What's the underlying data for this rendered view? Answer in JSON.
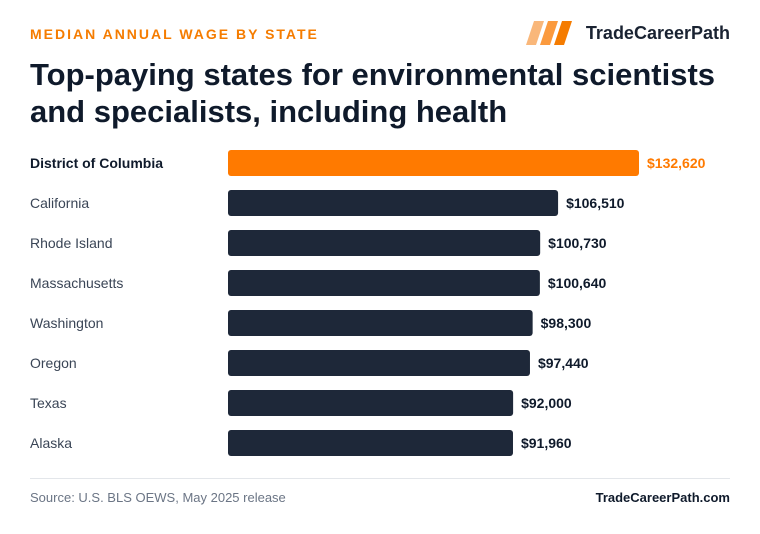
{
  "header": {
    "eyebrow": "MEDIAN ANNUAL WAGE BY STATE",
    "brand": "TradeCareerPath",
    "logo_icon": "stripes-logo-icon",
    "title": "Top-paying states for environmental scientists and specialists, including health"
  },
  "colors": {
    "accent": "#ff7a00",
    "bar": "#1e2839",
    "label_dark": "#0f1a2b",
    "label_muted": "#3a4556"
  },
  "chart_data": {
    "type": "bar",
    "orientation": "horizontal",
    "categories": [
      "District of Columbia",
      "California",
      "Rhode Island",
      "Massachusetts",
      "Washington",
      "Oregon",
      "Texas",
      "Alaska"
    ],
    "values": [
      132620,
      106510,
      100730,
      100640,
      98300,
      97440,
      92000,
      91960
    ],
    "value_labels": [
      "$132,620",
      "$106,510",
      "$100,730",
      "$100,640",
      "$98,300",
      "$97,440",
      "$92,000",
      "$91,960"
    ],
    "highlight_index": 0,
    "xlim": [
      0,
      132620
    ],
    "grid": false,
    "title": "Top-paying states for environmental scientists and specialists, including health"
  },
  "footer": {
    "source": "Source: U.S. BLS OEWS, May 2025 release",
    "site": "TradeCareerPath.com"
  }
}
